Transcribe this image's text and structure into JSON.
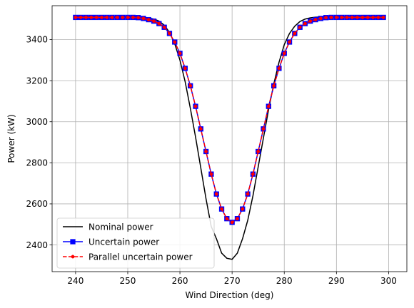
{
  "chart_data": {
    "type": "line",
    "title": "",
    "xlabel": "Wind Direction (deg)",
    "ylabel": "Power (kW)",
    "xlim": [
      235.5,
      303.5
    ],
    "ylim": [
      2270,
      3565
    ],
    "xticks": [
      240,
      250,
      260,
      270,
      280,
      290,
      300
    ],
    "yticks": [
      2400,
      2600,
      2800,
      3000,
      3200,
      3400
    ],
    "grid": true,
    "legend_position": "lower-left",
    "x": [
      240,
      241,
      242,
      243,
      244,
      245,
      246,
      247,
      248,
      249,
      250,
      251,
      252,
      253,
      254,
      255,
      256,
      257,
      258,
      259,
      260,
      261,
      262,
      263,
      264,
      265,
      266,
      267,
      268,
      269,
      270,
      271,
      272,
      273,
      274,
      275,
      276,
      277,
      278,
      279,
      280,
      281,
      282,
      283,
      284,
      285,
      286,
      287,
      288,
      289,
      290,
      291,
      292,
      293,
      294,
      295,
      296,
      297,
      298,
      299
    ],
    "series": [
      {
        "name": "Nominal power",
        "color": "#000000",
        "marker": "none",
        "linestyle": "solid",
        "values": [
          3510,
          3510,
          3510,
          3510,
          3510,
          3510,
          3510,
          3510,
          3510,
          3510,
          3510,
          3510,
          3510,
          3508,
          3505,
          3500,
          3490,
          3470,
          3435,
          3380,
          3300,
          3195,
          3065,
          2925,
          2775,
          2625,
          2490,
          2430,
          2360,
          2335,
          2330,
          2360,
          2430,
          2520,
          2640,
          2780,
          2920,
          3060,
          3185,
          3290,
          3375,
          3430,
          3465,
          3488,
          3500,
          3506,
          3509,
          3510,
          3510,
          3510,
          3510,
          3510,
          3510,
          3510,
          3510,
          3510,
          3510,
          3510,
          3510,
          3510
        ]
      },
      {
        "name": "Uncertain power",
        "color": "#0000ff",
        "marker": "square",
        "linestyle": "solid",
        "values": [
          3508,
          3508,
          3508,
          3508,
          3508,
          3508,
          3508,
          3508,
          3508,
          3508,
          3508,
          3508,
          3507,
          3503,
          3497,
          3490,
          3478,
          3460,
          3430,
          3388,
          3333,
          3260,
          3175,
          3075,
          2965,
          2855,
          2745,
          2648,
          2575,
          2528,
          2510,
          2528,
          2575,
          2648,
          2745,
          2855,
          2965,
          3075,
          3175,
          3260,
          3333,
          3388,
          3430,
          3460,
          3478,
          3490,
          3497,
          3503,
          3507,
          3508,
          3508,
          3508,
          3508,
          3508,
          3508,
          3508,
          3508,
          3508,
          3508,
          3508
        ]
      },
      {
        "name": "Parallel uncertain power",
        "color": "#ff0000",
        "marker": "circle",
        "linestyle": "dashed",
        "values": [
          3508,
          3508,
          3508,
          3508,
          3508,
          3508,
          3508,
          3508,
          3508,
          3508,
          3508,
          3508,
          3507,
          3503,
          3497,
          3490,
          3478,
          3460,
          3430,
          3388,
          3333,
          3260,
          3175,
          3075,
          2965,
          2855,
          2745,
          2648,
          2575,
          2528,
          2510,
          2528,
          2575,
          2648,
          2745,
          2855,
          2965,
          3075,
          3175,
          3260,
          3333,
          3388,
          3430,
          3460,
          3478,
          3490,
          3497,
          3503,
          3507,
          3508,
          3508,
          3508,
          3508,
          3508,
          3508,
          3508,
          3508,
          3508,
          3508,
          3508
        ]
      }
    ]
  }
}
